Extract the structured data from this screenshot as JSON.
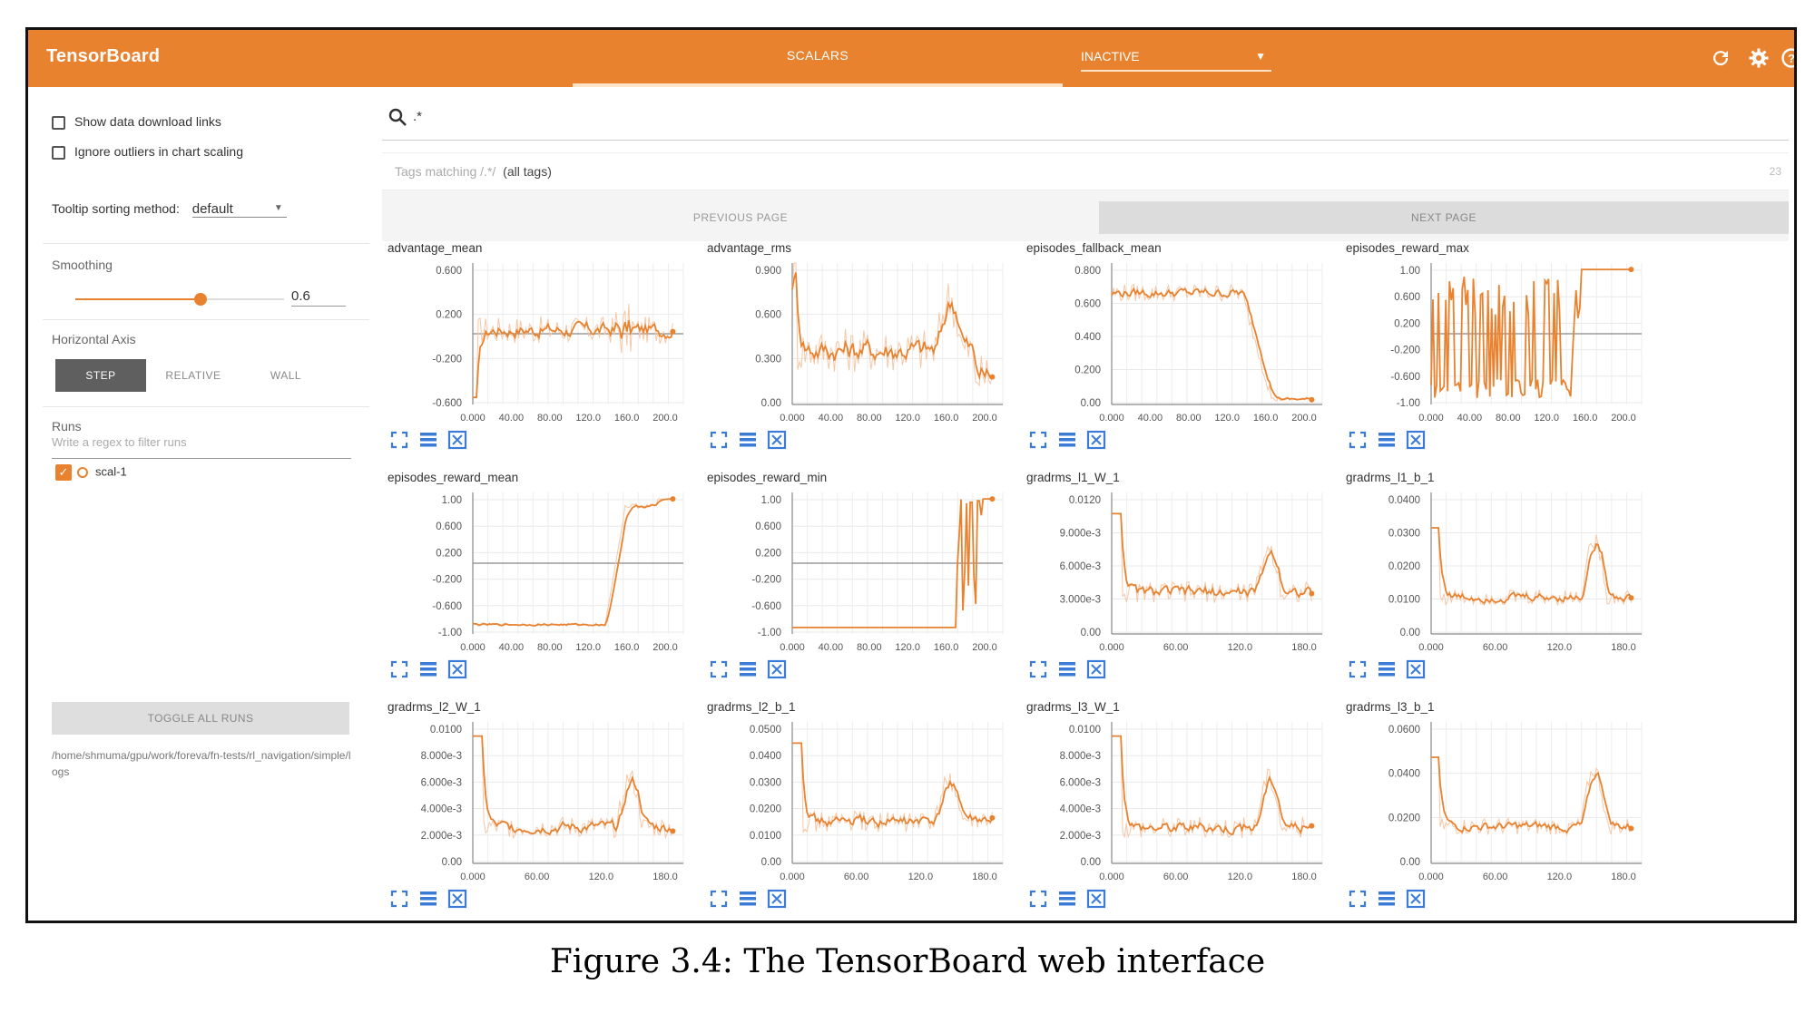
{
  "app": {
    "title": "TensorBoard",
    "tab_scalars": "SCALARS",
    "inactive_label": "INACTIVE",
    "accent_color": "#e9822f",
    "icons": [
      "refresh-icon",
      "settings-icon",
      "help-icon"
    ]
  },
  "sidebar": {
    "show_download_links": {
      "label": "Show data download links",
      "checked": false
    },
    "ignore_outliers": {
      "label": "Ignore outliers in chart scaling",
      "checked": false
    },
    "tooltip_sorting": {
      "label": "Tooltip sorting method:",
      "value": "default"
    },
    "smoothing": {
      "label": "Smoothing",
      "value": "0.6",
      "fraction": 0.6
    },
    "horizontal_axis": {
      "label": "Horizontal Axis",
      "options": [
        "STEP",
        "RELATIVE",
        "WALL"
      ],
      "selected": "STEP"
    },
    "runs": {
      "label": "Runs",
      "filter_placeholder": "Write a regex to filter runs",
      "items": [
        {
          "name": "scal-1",
          "checked": true
        }
      ]
    },
    "toggle_all_runs": "TOGGLE ALL RUNS",
    "logdir": "/home/shmuma/gpu/work/foreva/fn-tests/rl_navigation/simple/logs"
  },
  "main": {
    "search_value": ".*",
    "tags_prefix": "Tags matching /.*/",
    "tags_all": "(all tags)",
    "tags_count": "23",
    "prev_page": "PREVIOUS PAGE",
    "next_page": "NEXT PAGE",
    "card_icons": [
      "expand-icon",
      "data-table-icon",
      "fit-domain-icon"
    ]
  },
  "chart_data": [
    {
      "type": "line",
      "title": "advantage_mean",
      "yticks": [
        "0.600",
        "0.200",
        "-0.200",
        "-0.600"
      ],
      "xticks": [
        "0.000",
        "40.00",
        "80.00",
        "120.0",
        "160.0",
        "200.0"
      ],
      "xlim": [
        0,
        210
      ],
      "ylim": [
        -0.9,
        0.9
      ],
      "zero_line": true,
      "shape": "advmean"
    },
    {
      "type": "line",
      "title": "advantage_rms",
      "yticks": [
        "0.900",
        "0.600",
        "0.300",
        "0.00"
      ],
      "xticks": [
        "0.000",
        "40.00",
        "80.00",
        "120.0",
        "160.0",
        "200.0"
      ],
      "xlim": [
        0,
        210
      ],
      "ylim": [
        0,
        1.1
      ],
      "zero_line": false,
      "shape": "advrms"
    },
    {
      "type": "line",
      "title": "episodes_fallback_mean",
      "yticks": [
        "0.800",
        "0.600",
        "0.400",
        "0.200",
        "0.00"
      ],
      "xticks": [
        "0.000",
        "40.00",
        "80.00",
        "120.0",
        "160.0",
        "200.0"
      ],
      "xlim": [
        0,
        210
      ],
      "ylim": [
        0,
        0.95
      ],
      "zero_line": false,
      "shape": "fallback"
    },
    {
      "type": "line",
      "title": "episodes_reward_max",
      "yticks": [
        "1.00",
        "0.600",
        "0.200",
        "-0.200",
        "-0.600",
        "-1.00"
      ],
      "xticks": [
        "0.000",
        "40.00",
        "80.00",
        "120.0",
        "160.0",
        "200.0"
      ],
      "xlim": [
        0,
        210
      ],
      "ylim": [
        -1.1,
        1.1
      ],
      "zero_line": true,
      "shape": "rewmax"
    },
    {
      "type": "line",
      "title": "episodes_reward_mean",
      "yticks": [
        "1.00",
        "0.600",
        "0.200",
        "-0.200",
        "-0.600",
        "-1.00"
      ],
      "xticks": [
        "0.000",
        "40.00",
        "80.00",
        "120.0",
        "160.0",
        "200.0"
      ],
      "xlim": [
        0,
        210
      ],
      "ylim": [
        -1.1,
        1.1
      ],
      "zero_line": true,
      "shape": "rewmean"
    },
    {
      "type": "line",
      "title": "episodes_reward_min",
      "yticks": [
        "1.00",
        "0.600",
        "0.200",
        "-0.200",
        "-0.600",
        "-1.00"
      ],
      "xticks": [
        "0.000",
        "40.00",
        "80.00",
        "120.0",
        "160.0",
        "200.0"
      ],
      "xlim": [
        0,
        210
      ],
      "ylim": [
        -1.1,
        1.1
      ],
      "zero_line": true,
      "shape": "rewmin"
    },
    {
      "type": "line",
      "title": "gradrms_l1_W_1",
      "yticks": [
        "0.0120",
        "9.000e-3",
        "6.000e-3",
        "3.000e-3",
        "0.00"
      ],
      "xticks": [
        "0.000",
        "60.00",
        "120.0",
        "180.0"
      ],
      "xlim": [
        0,
        210
      ],
      "ylim": [
        0,
        0.0132
      ],
      "zero_line": false,
      "shape": "grad"
    },
    {
      "type": "line",
      "title": "gradrms_l1_b_1",
      "yticks": [
        "0.0400",
        "0.0300",
        "0.0200",
        "0.0100",
        "0.00"
      ],
      "xticks": [
        "0.000",
        "60.00",
        "120.0",
        "180.0"
      ],
      "xlim": [
        0,
        210
      ],
      "ylim": [
        0,
        0.046
      ],
      "zero_line": false,
      "shape": "grad2"
    },
    {
      "type": "line",
      "title": "gradrms_l2_W_1",
      "yticks": [
        "0.0100",
        "8.000e-3",
        "6.000e-3",
        "4.000e-3",
        "2.000e-3",
        "0.00"
      ],
      "xticks": [
        "0.000",
        "60.00",
        "120.0",
        "180.0"
      ],
      "xlim": [
        0,
        210
      ],
      "ylim": [
        0,
        0.011
      ],
      "zero_line": false,
      "shape": "grad3"
    },
    {
      "type": "line",
      "title": "gradrms_l2_b_1",
      "yticks": [
        "0.0500",
        "0.0400",
        "0.0300",
        "0.0200",
        "0.0100",
        "0.00"
      ],
      "xticks": [
        "0.000",
        "60.00",
        "120.0",
        "180.0"
      ],
      "xlim": [
        0,
        210
      ],
      "ylim": [
        0,
        0.055
      ],
      "zero_line": false,
      "shape": "grad"
    },
    {
      "type": "line",
      "title": "gradrms_l3_W_1",
      "yticks": [
        "0.0100",
        "8.000e-3",
        "6.000e-3",
        "4.000e-3",
        "2.000e-3",
        "0.00"
      ],
      "xticks": [
        "0.000",
        "60.00",
        "120.0",
        "180.0"
      ],
      "xlim": [
        0,
        210
      ],
      "ylim": [
        0,
        0.011
      ],
      "zero_line": false,
      "shape": "grad3"
    },
    {
      "type": "line",
      "title": "gradrms_l3_b_1",
      "yticks": [
        "0.0600",
        "0.0400",
        "0.0200",
        "0.00"
      ],
      "xticks": [
        "0.000",
        "60.00",
        "120.0",
        "180.0"
      ],
      "xlim": [
        0,
        210
      ],
      "ylim": [
        0,
        0.075
      ],
      "zero_line": false,
      "shape": "grad2"
    }
  ],
  "caption": "Figure 3.4: The TensorBoard web interface"
}
